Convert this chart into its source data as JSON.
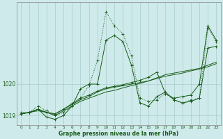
{
  "xlabel": "Graphe pression niveau de la mer (hPa)",
  "bg_color": "#ceeaea",
  "line_color": "#1a5c1a",
  "grid_color": "#a8cccc",
  "ylim": [
    1018.7,
    1022.6
  ],
  "xlim": [
    -0.5,
    23.5
  ],
  "yticks": [
    1019,
    1020
  ],
  "xticks": [
    0,
    1,
    2,
    3,
    4,
    5,
    6,
    7,
    8,
    9,
    10,
    11,
    12,
    13,
    14,
    15,
    16,
    17,
    18,
    19,
    20,
    21,
    22,
    23
  ],
  "series": [
    {
      "x": [
        0,
        1,
        2,
        3,
        4,
        5,
        6,
        7,
        8,
        9,
        10,
        11,
        12,
        13,
        14,
        15,
        16,
        17,
        18,
        19,
        20,
        21,
        22,
        23
      ],
      "y": [
        1019.1,
        1019.1,
        1019.3,
        1019.15,
        1019.0,
        1019.1,
        1019.3,
        1019.55,
        1019.95,
        1020.75,
        1022.3,
        1021.85,
        1021.6,
        1020.9,
        1019.55,
        1019.45,
        1019.5,
        1019.7,
        1019.5,
        1019.4,
        1019.5,
        1019.55,
        1021.8,
        1021.35
      ],
      "style": "dotted",
      "marker": "+"
    },
    {
      "x": [
        0,
        1,
        2,
        3,
        4,
        5,
        6,
        7,
        8,
        9,
        10,
        11,
        12,
        13,
        14,
        15,
        16,
        17,
        18,
        19,
        20,
        21,
        22,
        23
      ],
      "y": [
        1019.05,
        1019.1,
        1019.2,
        1018.95,
        1018.88,
        1019.0,
        1019.3,
        1019.85,
        1020.0,
        1020.0,
        1021.4,
        1021.55,
        1021.35,
        1020.6,
        1019.4,
        1019.3,
        1019.6,
        1019.75,
        1019.5,
        1019.4,
        1019.45,
        1019.55,
        1021.15,
        1021.2
      ],
      "style": "solid",
      "marker": "+"
    },
    {
      "x": [
        0,
        1,
        2,
        3,
        4,
        5,
        6,
        7,
        8,
        9,
        10,
        11,
        12,
        13,
        14,
        15,
        16,
        17,
        18,
        19,
        20,
        21,
        22,
        23
      ],
      "y": [
        1019.05,
        1019.1,
        1019.2,
        1019.1,
        1019.05,
        1019.2,
        1019.35,
        1019.5,
        1019.6,
        1019.75,
        1019.85,
        1019.9,
        1019.95,
        1020.0,
        1020.05,
        1020.1,
        1020.2,
        1020.3,
        1020.35,
        1020.4,
        1020.45,
        1020.5,
        1020.6,
        1020.7
      ],
      "style": "solid",
      "marker": null
    },
    {
      "x": [
        0,
        1,
        2,
        3,
        4,
        5,
        6,
        7,
        8,
        9,
        10,
        11,
        12,
        13,
        14,
        15,
        16,
        17,
        18,
        19,
        20,
        21,
        22,
        23
      ],
      "y": [
        1019.05,
        1019.1,
        1019.15,
        1019.1,
        1019.0,
        1019.15,
        1019.3,
        1019.45,
        1019.55,
        1019.65,
        1019.75,
        1019.8,
        1019.88,
        1019.95,
        1020.02,
        1020.1,
        1020.18,
        1020.25,
        1020.3,
        1020.35,
        1020.42,
        1020.48,
        1020.55,
        1020.65
      ],
      "style": "solid",
      "marker": null
    },
    {
      "x": [
        0,
        1,
        2,
        3,
        4,
        5,
        6,
        7,
        8,
        9,
        10,
        11,
        12,
        13,
        14,
        15,
        16,
        17,
        18,
        19,
        20,
        21,
        22,
        23
      ],
      "y": [
        1019.05,
        1019.1,
        1019.2,
        1019.1,
        1019.05,
        1019.2,
        1019.38,
        1019.55,
        1019.65,
        1019.78,
        1019.88,
        1019.93,
        1019.98,
        1020.05,
        1020.12,
        1020.22,
        1020.38,
        1019.7,
        1019.55,
        1019.6,
        1019.65,
        1020.0,
        1021.85,
        1021.4
      ],
      "style": "solid",
      "marker": "+"
    }
  ]
}
